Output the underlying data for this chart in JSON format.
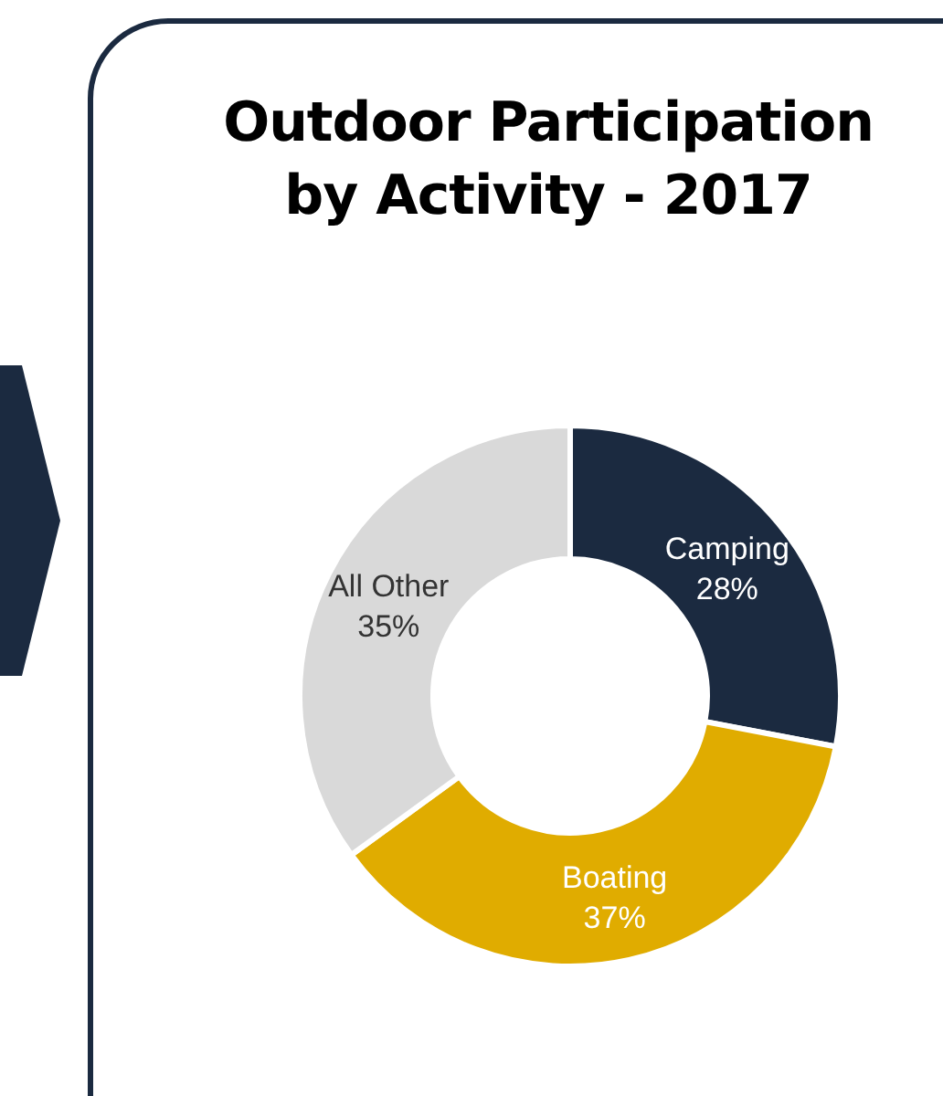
{
  "chart_data": {
    "type": "donut",
    "title": "Outdoor Participation by Activity - 2017",
    "categories": [
      "Camping",
      "Boating",
      "All Other"
    ],
    "values": [
      28,
      37,
      35
    ],
    "colors": [
      "#1b2a40",
      "#e0ac00",
      "#d9d9d9"
    ],
    "value_labels": [
      "28%",
      "37%",
      "35%"
    ],
    "legend": false
  }
}
